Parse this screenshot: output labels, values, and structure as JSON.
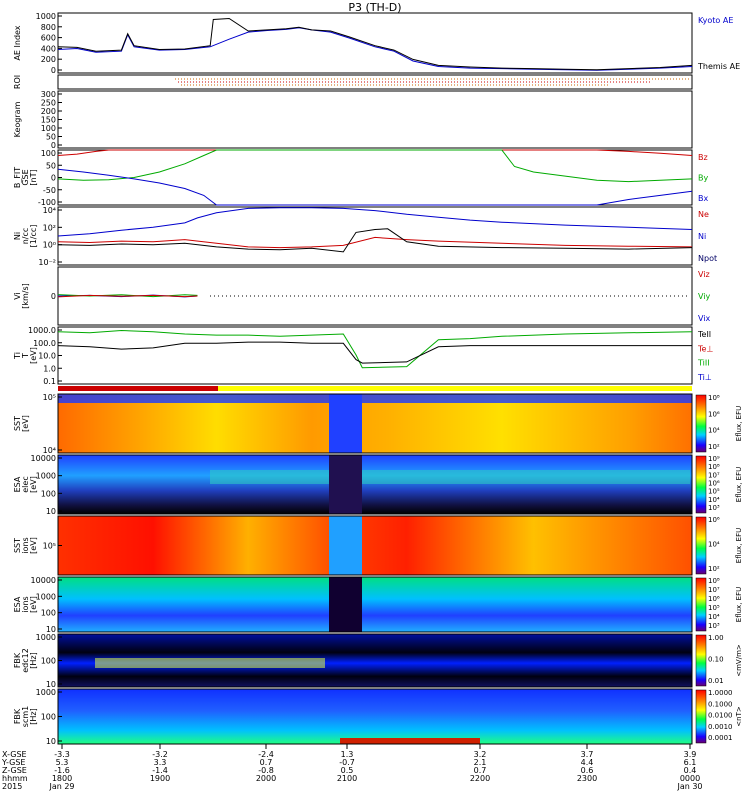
{
  "title": "P3 (TH-D)",
  "chart_data": {
    "type": "multi-panel time series / spectrogram",
    "title": "P3 (TH-D)",
    "time_axis": {
      "rows": [
        {
          "label": "X-GSE",
          "values": [
            "-3.3",
            "-3.2",
            "-2.4",
            "1.3",
            "3.2",
            "3.7",
            "3.9"
          ]
        },
        {
          "label": "Y-GSE",
          "values": [
            "5.3",
            "3.3",
            "0.7",
            "-0.7",
            "2.1",
            "4.4",
            "6.1"
          ]
        },
        {
          "label": "Z-GSE",
          "values": [
            "-1.6",
            "-1.4",
            "-0.8",
            "0.5",
            "0.7",
            "0.6",
            "0.4"
          ]
        },
        {
          "label": "hhmm",
          "values": [
            "1800",
            "1900",
            "2000",
            "2100",
            "2200",
            "2300",
            "0000"
          ]
        },
        {
          "label": "2015",
          "values": [
            "Jan 29",
            "",
            "",
            "",
            "",
            "",
            "Jan 30"
          ]
        }
      ]
    },
    "panels": [
      {
        "id": "ae",
        "ylabel": "AE Index",
        "yticks": [
          "1000",
          "800",
          "600",
          "400",
          "200",
          "0"
        ],
        "ylim": [
          0,
          1100
        ],
        "legend": [
          "Kyoto AE",
          "Themis AE"
        ],
        "legend_colors": [
          "#0000cc",
          "#000000"
        ],
        "series": [
          {
            "name": "Kyoto AE",
            "color": "#0000cc",
            "t": [
              0,
              0.03,
              0.06,
              0.1,
              0.11,
              0.12,
              0.16,
              0.2,
              0.24,
              0.27,
              0.3,
              0.33,
              0.36,
              0.38,
              0.4,
              0.43,
              0.46,
              0.5,
              0.53,
              0.56,
              0.6,
              0.65,
              0.7,
              0.75,
              0.8,
              0.85,
              0.9,
              0.95,
              1.0
            ],
            "v": [
              430,
              450,
              380,
              400,
              700,
              480,
              420,
              430,
              480,
              620,
              750,
              780,
              800,
              830,
              790,
              750,
              640,
              480,
              400,
              220,
              120,
              90,
              80,
              70,
              60,
              50,
              70,
              90,
              120
            ]
          },
          {
            "name": "Themis AE",
            "color": "#000000",
            "t": [
              0,
              0.03,
              0.06,
              0.1,
              0.11,
              0.12,
              0.16,
              0.2,
              0.24,
              0.245,
              0.27,
              0.3,
              0.33,
              0.36,
              0.38,
              0.4,
              0.43,
              0.46,
              0.5,
              0.53,
              0.56,
              0.6,
              0.65,
              0.7,
              0.75,
              0.8,
              0.85,
              0.9,
              0.95,
              1.0
            ],
            "v": [
              480,
              470,
              400,
              420,
              720,
              500,
              430,
              440,
              500,
              980,
              1000,
              770,
              790,
              810,
              840,
              790,
              770,
              660,
              500,
              420,
              250,
              140,
              110,
              90,
              80,
              70,
              60,
              80,
              100,
              140
            ]
          }
        ]
      },
      {
        "id": "roi",
        "ylabel": "ROI",
        "yticks": [],
        "ylim": [
          0,
          1
        ],
        "series": []
      },
      {
        "id": "keogram",
        "ylabel": "Keogram",
        "yticks": [
          "300",
          "250",
          "200",
          "150",
          "100",
          "50",
          "0"
        ],
        "ylim": [
          0,
          300
        ],
        "series": []
      },
      {
        "id": "bfit",
        "ylabel": "B_FIT\nGSE\n[nT]",
        "yticks": [
          "100",
          "50",
          "0",
          "-50",
          "-100"
        ],
        "ylim": [
          -100,
          100
        ],
        "legend": [
          "Bz",
          "By",
          "Bx"
        ],
        "legend_colors": [
          "#cc0000",
          "#00aa00",
          "#0000cc"
        ],
        "series": [
          {
            "name": "Bz",
            "color": "#cc0000",
            "t": [
              0,
              0.03,
              0.06,
              0.08,
              0.85,
              0.9,
              0.95,
              1.0
            ],
            "v": [
              80,
              85,
              95,
              100,
              100,
              95,
              88,
              80
            ]
          },
          {
            "name": "By",
            "color": "#00aa00",
            "t": [
              0,
              0.04,
              0.08,
              0.12,
              0.16,
              0.2,
              0.23,
              0.25,
              0.7,
              0.72,
              0.75,
              0.8,
              0.85,
              0.9,
              0.95,
              1.0
            ],
            "v": [
              -5,
              -10,
              -8,
              0,
              20,
              50,
              80,
              100,
              100,
              40,
              20,
              5,
              -10,
              -15,
              -10,
              -5
            ]
          },
          {
            "name": "Bx",
            "color": "#0000cc",
            "t": [
              0,
              0.04,
              0.08,
              0.12,
              0.16,
              0.2,
              0.23,
              0.25,
              0.85,
              0.9,
              0.95,
              1.0
            ],
            "v": [
              30,
              20,
              8,
              -5,
              -20,
              -40,
              -65,
              -100,
              -100,
              -80,
              -65,
              -50
            ]
          }
        ]
      },
      {
        "id": "density",
        "ylabel": "Ni\nn/cc\n[1/cc]",
        "yticks": [
          "10⁴",
          "10²",
          "10⁰",
          "10⁻²"
        ],
        "ylim": [
          -3,
          5
        ],
        "log": true,
        "legend": [
          "Ne",
          "Ni",
          "Npot"
        ],
        "legend_colors": [
          "#cc0000",
          "#0000cc",
          "#000066"
        ],
        "series": [
          {
            "name": "Ni",
            "color": "#0000cc",
            "t": [
              0,
              0.05,
              0.1,
              0.15,
              0.2,
              0.22,
              0.25,
              0.3,
              0.35,
              0.4,
              0.45,
              0.5,
              0.55,
              0.6,
              0.65,
              0.7,
              0.8,
              0.9,
              1.0
            ],
            "v": [
              1.0,
              1.3,
              1.8,
              2.2,
              2.8,
              3.5,
              4.2,
              4.8,
              4.9,
              4.9,
              4.8,
              4.5,
              4.0,
              3.6,
              3.2,
              2.9,
              2.5,
              2.2,
              1.9
            ]
          },
          {
            "name": "Ne",
            "color": "#cc0000",
            "t": [
              0,
              0.05,
              0.1,
              0.15,
              0.2,
              0.25,
              0.3,
              0.35,
              0.4,
              0.45,
              0.5,
              0.55,
              0.6,
              0.7,
              0.8,
              0.9,
              1.0
            ],
            "v": [
              0.2,
              0.1,
              0.3,
              0.2,
              0.5,
              0,
              -0.5,
              -0.6,
              -0.5,
              -0.3,
              0.8,
              0.5,
              0.3,
              0,
              -0.3,
              -0.4,
              -0.5
            ]
          },
          {
            "name": "Npot",
            "color": "#000000",
            "t": [
              0,
              0.05,
              0.1,
              0.15,
              0.2,
              0.25,
              0.3,
              0.35,
              0.4,
              0.45,
              0.47,
              0.5,
              0.52,
              0.55,
              0.6,
              0.7,
              0.8,
              0.9,
              1.0
            ],
            "v": [
              -0.2,
              -0.3,
              -0.1,
              -0.2,
              0,
              -0.5,
              -0.8,
              -0.9,
              -0.7,
              -1.2,
              1.5,
              1.9,
              2.0,
              0.2,
              -0.4,
              -0.6,
              -0.7,
              -0.8,
              -0.6
            ]
          }
        ]
      },
      {
        "id": "velocity",
        "ylabel": "Vi\n[km/s]",
        "yticks": [
          "0"
        ],
        "ylim": [
          -1,
          1
        ],
        "legend": [
          "Viz",
          "Viy",
          "Vix"
        ],
        "legend_colors": [
          "#cc0000",
          "#00aa00",
          "#0000cc"
        ],
        "series": [
          {
            "name": "Vix",
            "color": "#0000cc",
            "t": [
              0,
              0.05,
              0.1,
              0.15,
              0.2,
              0.22
            ],
            "v": [
              0,
              0.02,
              -0.02,
              0.03,
              -0.03,
              0
            ]
          },
          {
            "name": "Viy",
            "color": "#00aa00",
            "t": [
              0,
              0.05,
              0.1,
              0.15,
              0.2,
              0.22
            ],
            "v": [
              0.05,
              0,
              0.04,
              -0.02,
              0.04,
              0.02
            ]
          },
          {
            "name": "Viz",
            "color": "#cc0000",
            "t": [
              0,
              0.05,
              0.1,
              0.15,
              0.2,
              0.22
            ],
            "v": [
              -0.03,
              0.02,
              -0.01,
              0.02,
              -0.02,
              0
            ]
          }
        ]
      },
      {
        "id": "temperature",
        "ylabel": "Ti\nT\n[eV]",
        "yticks": [
          "1000.0",
          "100.0",
          "10.0",
          "1.0",
          "0.1"
        ],
        "ylim": [
          -1.3,
          3.6
        ],
        "log": true,
        "legend": [
          "TeII",
          "Te⊥",
          "TiII",
          "Ti⊥"
        ],
        "legend_colors": [
          "#000000",
          "#cc0000",
          "#00aa00",
          "#0000cc"
        ],
        "series": [
          {
            "name": "TiII",
            "color": "#00aa00",
            "t": [
              0,
              0.05,
              0.1,
              0.15,
              0.2,
              0.25,
              0.3,
              0.35,
              0.4,
              0.45,
              0.47,
              0.48,
              0.55,
              0.6,
              0.65,
              0.7,
              0.8,
              0.9,
              1.0
            ],
            "v": [
              3.2,
              3.1,
              3.3,
              3.2,
              3.0,
              2.9,
              2.9,
              2.8,
              2.9,
              3.0,
              1.2,
              0.1,
              0.2,
              2.5,
              2.6,
              2.8,
              3.0,
              3.1,
              3.2
            ]
          },
          {
            "name": "TeII",
            "color": "#000000",
            "t": [
              0,
              0.05,
              0.1,
              0.15,
              0.2,
              0.25,
              0.3,
              0.35,
              0.4,
              0.45,
              0.47,
              0.48,
              0.55,
              0.6,
              0.65,
              0.7,
              0.8,
              0.9,
              1.0
            ],
            "v": [
              2.0,
              1.9,
              1.7,
              1.8,
              2.2,
              2.2,
              2.3,
              2.3,
              2.2,
              2.2,
              0.8,
              0.5,
              0.6,
              1.9,
              2.0,
              2.0,
              2.0,
              2.0,
              2.0
            ]
          }
        ]
      },
      {
        "id": "sst_e",
        "ylabel": "SST\n[eV]",
        "yticks": [
          "10⁵",
          "10⁴"
        ],
        "colorbar": {
          "label": "Eflux, EFU",
          "ticks": [
            "10⁸",
            "10⁶",
            "10⁴",
            "10²"
          ]
        }
      },
      {
        "id": "esa_e",
        "ylabel": "ESA\nelec\n[eV]",
        "yticks": [
          "10000",
          "1000",
          "100",
          "10"
        ],
        "colorbar": {
          "label": "Eflux, EFU",
          "ticks": [
            "10⁹",
            "10⁸",
            "10⁷",
            "10⁶",
            "10⁵",
            "10⁴",
            "10³"
          ]
        }
      },
      {
        "id": "sst_i",
        "ylabel": "SST\nions\n[eV]",
        "yticks": [
          "10⁵"
        ],
        "colorbar": {
          "label": "Eflux, EFU",
          "ticks": [
            "10⁶",
            "10⁴",
            "10²"
          ]
        }
      },
      {
        "id": "esa_i",
        "ylabel": "ESA\nions\n[eV]",
        "yticks": [
          "10000",
          "1000",
          "100",
          "10"
        ],
        "colorbar": {
          "label": "Eflux, EFU",
          "ticks": [
            "10⁸",
            "10⁷",
            "10⁶",
            "10⁵",
            "10⁴",
            "10³"
          ]
        }
      },
      {
        "id": "fbk_e",
        "ylabel": "FBK\nedc12\n[Hz]",
        "yticks": [
          "1000",
          "100",
          "10"
        ],
        "colorbar": {
          "label": "<mV/m>",
          "ticks": [
            "1.00",
            "0.10",
            "0.01"
          ]
        }
      },
      {
        "id": "fbk_b",
        "ylabel": "FBK\nscm1\n[Hz]",
        "yticks": [
          "1000",
          "100",
          "10"
        ],
        "colorbar": {
          "label": "<nT>",
          "ticks": [
            "1.0000",
            "0.1000",
            "0.0100",
            "0.0010",
            "0.0001"
          ]
        }
      }
    ]
  }
}
